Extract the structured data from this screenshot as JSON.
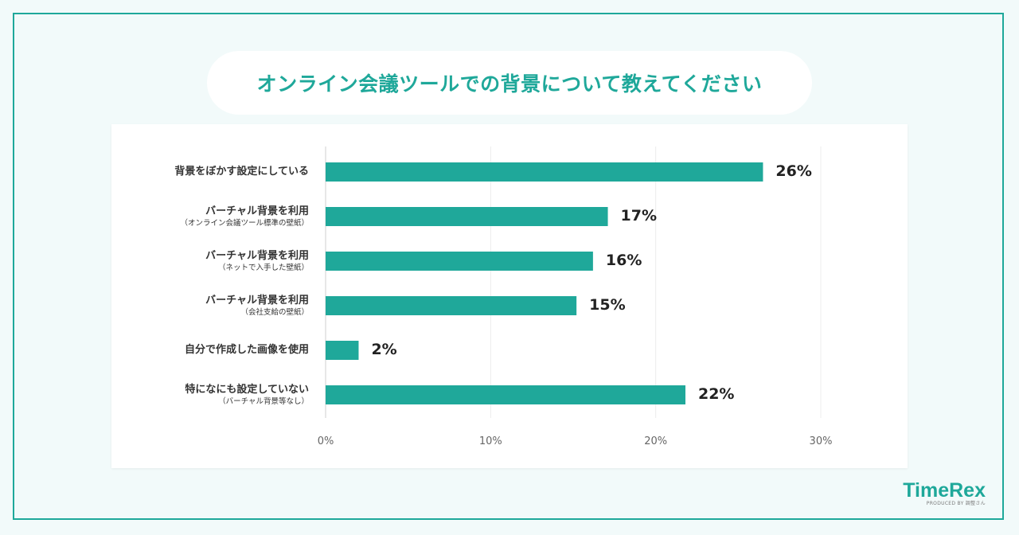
{
  "title": "オンライン会議ツールでの背景について教えてください",
  "chart_data": {
    "type": "bar",
    "orientation": "horizontal",
    "categories": [
      {
        "label": "背景をぼかす設定にしている",
        "sub": ""
      },
      {
        "label": "バーチャル背景を利用",
        "sub": "（オンライン会議ツール標準の壁紙）"
      },
      {
        "label": "バーチャル背景を利用",
        "sub": "（ネットで入手した壁紙）"
      },
      {
        "label": "バーチャル背景を利用",
        "sub": "（会社支給の壁紙）"
      },
      {
        "label": "自分で作成した画像を使用",
        "sub": ""
      },
      {
        "label": "特になにも設定していない",
        "sub": "（バーチャル背景等なし）"
      }
    ],
    "values": [
      26.5,
      17.1,
      16.2,
      15.2,
      2.0,
      21.8
    ],
    "value_labels": [
      "26%",
      "17%",
      "16%",
      "15%",
      "2%",
      "22%"
    ],
    "xlim": [
      0,
      30
    ],
    "ticks": [
      0,
      10,
      20,
      30
    ],
    "tick_labels": [
      "0%",
      "10%",
      "20%",
      "30%"
    ],
    "grid": true,
    "bar_color": "#1fa89a"
  },
  "logo": {
    "name": "TimeRex",
    "tagline": "PRODUCED BY 調整さん"
  },
  "colors": {
    "accent": "#1fa89a",
    "background": "#f2fafa"
  }
}
